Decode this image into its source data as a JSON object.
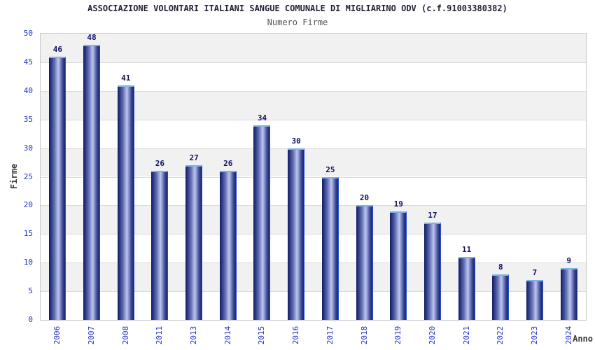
{
  "header": {
    "title": "ASSOCIAZIONE VOLONTARI ITALIANI SANGUE COMUNALE DI MIGLIARINO ODV (c.f.91003380382)",
    "subtitle": "Numero Firme"
  },
  "chart_data": {
    "type": "bar",
    "title": "ASSOCIAZIONE VOLONTARI ITALIANI SANGUE COMUNALE DI MIGLIARINO ODV (c.f.91003380382)",
    "subtitle": "Numero Firme",
    "categories": [
      "2006",
      "2007",
      "2008",
      "2011",
      "2013",
      "2014",
      "2015",
      "2016",
      "2017",
      "2018",
      "2019",
      "2020",
      "2021",
      "2022",
      "2023",
      "2024"
    ],
    "values": [
      46,
      48,
      41,
      26,
      27,
      26,
      34,
      30,
      25,
      20,
      19,
      17,
      11,
      8,
      7,
      9
    ],
    "xlabel": "Anno",
    "ylabel": "Firme",
    "ylim": [
      0,
      50
    ],
    "ytick_step": 5,
    "yticks": [
      0,
      5,
      10,
      15,
      20,
      25,
      30,
      35,
      40,
      45,
      50
    ],
    "grid": "horizontal alternating bands every 5 units, gray band at top (45-50)",
    "legend": "none",
    "value_labels": "above each bar, bold navy",
    "style": {
      "bar_dark": "#131c5e",
      "bar_light": "#bcc6ee",
      "bar_cap": "#7fb0e6",
      "bar_edge": "#2850d8",
      "band_gray": "#f1f1f1",
      "gridline": "#dadada",
      "plot_border": "#c8c8c8",
      "tick_label_color": "#2433cc",
      "value_label_color": "#101066",
      "title_color": "#222236",
      "subtitle_color": "#555555",
      "axis_title_color": "#3a3a3a",
      "background": "#ffffff"
    }
  }
}
